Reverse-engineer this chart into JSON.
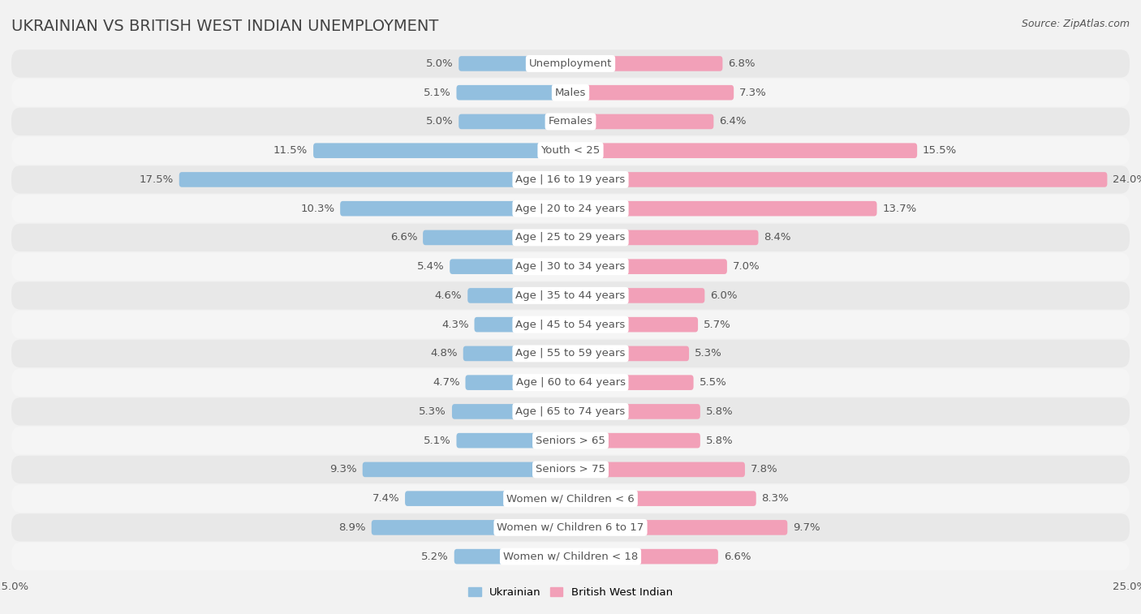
{
  "title": "UKRAINIAN VS BRITISH WEST INDIAN UNEMPLOYMENT",
  "source": "Source: ZipAtlas.com",
  "categories": [
    "Unemployment",
    "Males",
    "Females",
    "Youth < 25",
    "Age | 16 to 19 years",
    "Age | 20 to 24 years",
    "Age | 25 to 29 years",
    "Age | 30 to 34 years",
    "Age | 35 to 44 years",
    "Age | 45 to 54 years",
    "Age | 55 to 59 years",
    "Age | 60 to 64 years",
    "Age | 65 to 74 years",
    "Seniors > 65",
    "Seniors > 75",
    "Women w/ Children < 6",
    "Women w/ Children 6 to 17",
    "Women w/ Children < 18"
  ],
  "ukrainian": [
    5.0,
    5.1,
    5.0,
    11.5,
    17.5,
    10.3,
    6.6,
    5.4,
    4.6,
    4.3,
    4.8,
    4.7,
    5.3,
    5.1,
    9.3,
    7.4,
    8.9,
    5.2
  ],
  "british_west_indian": [
    6.8,
    7.3,
    6.4,
    15.5,
    24.0,
    13.7,
    8.4,
    7.0,
    6.0,
    5.7,
    5.3,
    5.5,
    5.8,
    5.8,
    7.8,
    8.3,
    9.7,
    6.6
  ],
  "ukrainian_color": "#92bfdf",
  "british_west_indian_color": "#f2a0b8",
  "bar_height": 0.52,
  "background_color": "#f2f2f2",
  "row_color_odd": "#e8e8e8",
  "row_color_even": "#f5f5f5",
  "axis_max": 25.0,
  "label_fontsize": 9.5,
  "value_fontsize": 9.5,
  "title_fontsize": 14,
  "source_fontsize": 9,
  "text_color": "#555555",
  "title_color": "#444444",
  "label_bg_color": "#ffffff"
}
